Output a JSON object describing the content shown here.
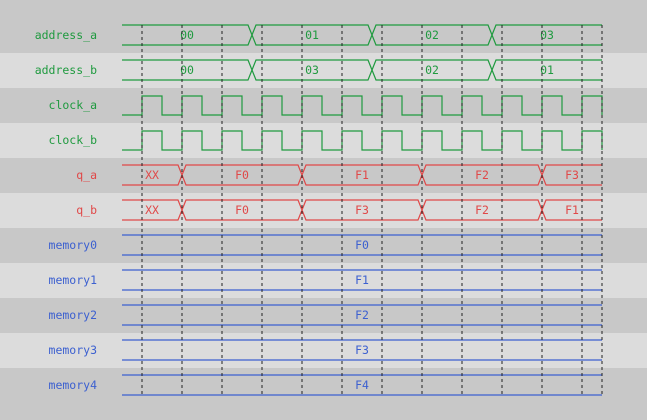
{
  "colors": {
    "band_dark": "#c8c8c8",
    "band_light": "#dcdcdc",
    "green": "#1f9a3f",
    "red": "#e04848",
    "blue": "#3c60d0",
    "grid": "#222222"
  },
  "time": {
    "start": 0,
    "end": 12,
    "clock_period": 1,
    "first_edge": 0.5
  },
  "signals": [
    {
      "name": "address_a",
      "kind": "bus",
      "color": "green",
      "segments": [
        {
          "from": 0,
          "to": 3.25,
          "value": "00"
        },
        {
          "from": 3.25,
          "to": 6.25,
          "value": "01"
        },
        {
          "from": 6.25,
          "to": 9.25,
          "value": "02"
        },
        {
          "from": 9.25,
          "to": 12,
          "value": "03"
        }
      ]
    },
    {
      "name": "address_b",
      "kind": "bus",
      "color": "green",
      "segments": [
        {
          "from": 0,
          "to": 3.25,
          "value": "00"
        },
        {
          "from": 3.25,
          "to": 6.25,
          "value": "03"
        },
        {
          "from": 6.25,
          "to": 9.25,
          "value": "02"
        },
        {
          "from": 9.25,
          "to": 12,
          "value": "01"
        }
      ]
    },
    {
      "name": "clock_a",
      "kind": "clock",
      "color": "green"
    },
    {
      "name": "clock_b",
      "kind": "clock",
      "color": "green"
    },
    {
      "name": "q_a",
      "kind": "bus",
      "color": "red",
      "segments": [
        {
          "from": 0,
          "to": 1.5,
          "value": "XX"
        },
        {
          "from": 1.5,
          "to": 4.5,
          "value": "F0"
        },
        {
          "from": 4.5,
          "to": 7.5,
          "value": "F1"
        },
        {
          "from": 7.5,
          "to": 10.5,
          "value": "F2"
        },
        {
          "from": 10.5,
          "to": 12,
          "value": "F3"
        }
      ]
    },
    {
      "name": "q_b",
      "kind": "bus",
      "color": "red",
      "segments": [
        {
          "from": 0,
          "to": 1.5,
          "value": "XX"
        },
        {
          "from": 1.5,
          "to": 4.5,
          "value": "F0"
        },
        {
          "from": 4.5,
          "to": 7.5,
          "value": "F3"
        },
        {
          "from": 7.5,
          "to": 10.5,
          "value": "F2"
        },
        {
          "from": 10.5,
          "to": 12,
          "value": "F1"
        }
      ]
    },
    {
      "name": "memory0",
      "kind": "bus",
      "color": "blue",
      "segments": [
        {
          "from": 0,
          "to": 12,
          "value": "F0"
        }
      ]
    },
    {
      "name": "memory1",
      "kind": "bus",
      "color": "blue",
      "segments": [
        {
          "from": 0,
          "to": 12,
          "value": "F1"
        }
      ]
    },
    {
      "name": "memory2",
      "kind": "bus",
      "color": "blue",
      "segments": [
        {
          "from": 0,
          "to": 12,
          "value": "F2"
        }
      ]
    },
    {
      "name": "memory3",
      "kind": "bus",
      "color": "blue",
      "segments": [
        {
          "from": 0,
          "to": 12,
          "value": "F3"
        }
      ]
    },
    {
      "name": "memory4",
      "kind": "bus",
      "color": "blue",
      "segments": [
        {
          "from": 0,
          "to": 12,
          "value": "F4"
        }
      ]
    }
  ]
}
